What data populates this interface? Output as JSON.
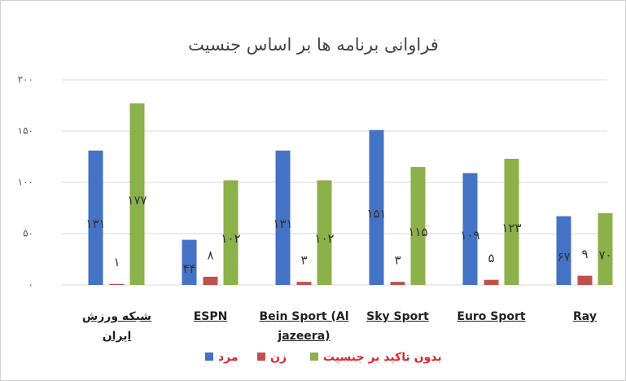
{
  "chart_data": {
    "type": "bar",
    "title": "فراوانی برنامه ها بر اساس جنسیت",
    "categories": [
      "شبکه ورزش ایران",
      "ESPN",
      "Bein Sport (Al jazeera)",
      "Sky Sport",
      "Euro Sport",
      "Ray"
    ],
    "series": [
      {
        "name": "مرد",
        "color": "#4472c4",
        "values": [
          131,
          44,
          131,
          151,
          109,
          67
        ],
        "value_labels": [
          "۱۳۱",
          "۴۴",
          "۱۳۱",
          "۱۵۱",
          "۱۰۹",
          "۶۷"
        ]
      },
      {
        "name": "زن",
        "color": "#c0504d",
        "values": [
          1,
          8,
          3,
          3,
          5,
          9
        ],
        "value_labels": [
          "۱",
          "۸",
          "۳",
          "۳",
          "۵",
          "۹"
        ]
      },
      {
        "name": "بدون تاکید بر جنسیت",
        "color": "#8cb04a",
        "values": [
          177,
          102,
          102,
          115,
          123,
          70
        ],
        "value_labels": [
          "۱۷۷",
          "۱۰۲",
          "۱۰۲",
          "۱۱۵",
          "۱۲۳",
          "۷۰"
        ]
      }
    ],
    "ylim": [
      0,
      200
    ],
    "yticks": [
      {
        "value": 0,
        "label": "۰"
      },
      {
        "value": 50,
        "label": "۵۰"
      },
      {
        "value": 100,
        "label": "۱۰۰"
      },
      {
        "value": 150,
        "label": "۱۵۰"
      },
      {
        "value": 200,
        "label": "۲۰۰"
      }
    ],
    "grid": true
  }
}
